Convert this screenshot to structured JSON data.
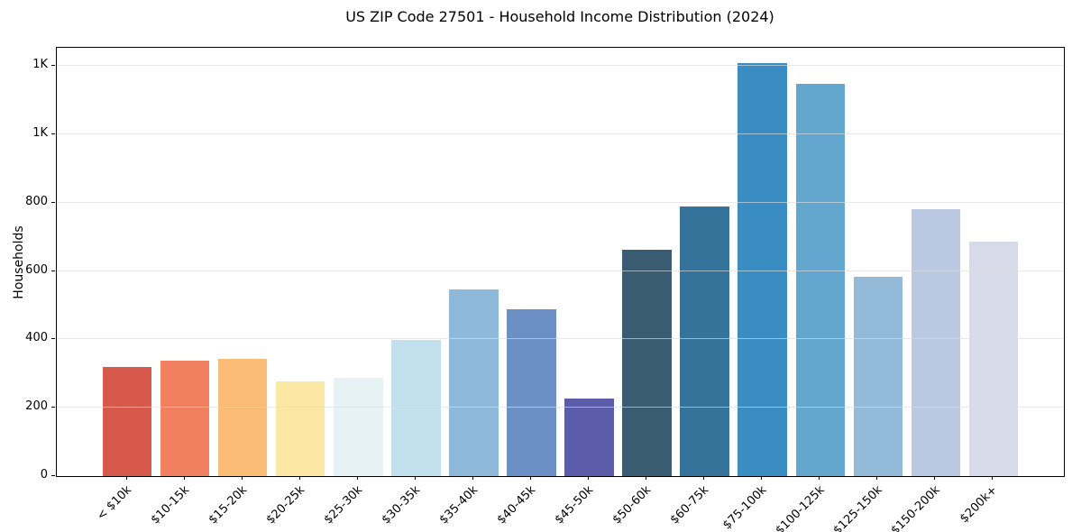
{
  "chart_data": {
    "type": "bar",
    "title": "US ZIP Code 27501 - Household Income Distribution (2024)",
    "xlabel": "",
    "ylabel": "Households",
    "categories": [
      "< $10k",
      "$10-15k",
      "$15-20k",
      "$20-25k",
      "$25-30k",
      "$30-35k",
      "$35-40k",
      "$40-45k",
      "$45-50k",
      "$50-60k",
      "$60-75k",
      "$75-100k",
      "$100-125k",
      "$125-150k",
      "$150-200k",
      "$200k+"
    ],
    "values": [
      318,
      339,
      343,
      276,
      287,
      398,
      545,
      489,
      226,
      663,
      789,
      1208,
      1147,
      584,
      782,
      687
    ],
    "bar_colors": [
      "#d6594c",
      "#f0805f",
      "#fabb74",
      "#fde7a4",
      "#e7f2f4",
      "#c2dfee",
      "#8fb9da",
      "#6c90c5",
      "#5c5daa",
      "#3a5c72",
      "#35739a",
      "#3a8dc2",
      "#63a6ce",
      "#94bad9",
      "#bac9e1",
      "#d7dbe9"
    ],
    "ylim": [
      0,
      1253
    ],
    "yticks": {
      "values": [
        0,
        200,
        400,
        600,
        800,
        1000,
        1200
      ],
      "labels": [
        "0",
        "200",
        "400",
        "600",
        "800",
        "1K",
        "1K"
      ]
    },
    "grid": "horizontal",
    "legend": "none",
    "x_tick_rotation_deg": 45
  }
}
